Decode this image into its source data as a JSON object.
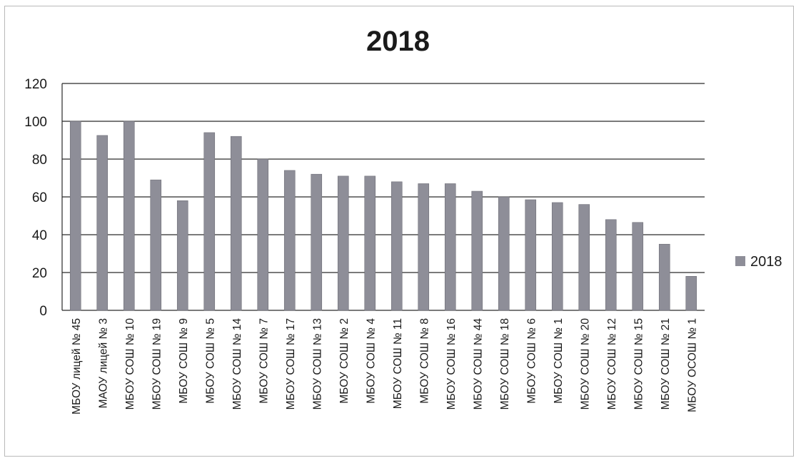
{
  "chart_data": {
    "type": "bar",
    "title": "2018",
    "categories": [
      "МБОУ лицей № 45",
      "МАОУ лицей № 3",
      "МБОУ СОШ № 10",
      "МБОУ СОШ № 19",
      "МБОУ СОШ № 9",
      "МБОУ СОШ № 5",
      "МБОУ СОШ № 14",
      "МБОУ СОШ № 7",
      "МБОУ СОШ № 17",
      "МБОУ СОШ № 13",
      "МБОУ СОШ № 2",
      "МБОУ СОШ № 4",
      "МБОУ СОШ № 11",
      "МБОУ СОШ № 8",
      "МБОУ СОШ № 16",
      "МБОУ СОШ № 44",
      "МБОУ СОШ № 18",
      "МБОУ СОШ № 6",
      "МБОУ СОШ № 1",
      "МБОУ СОШ № 20",
      "МБОУ СОШ № 12",
      "МБОУ СОШ № 15",
      "МБОУ СОШ № 21",
      "МБОУ ОСОШ № 1"
    ],
    "series": [
      {
        "name": "2018",
        "values": [
          100,
          92.5,
          100,
          69,
          58,
          94,
          92,
          80,
          74,
          72,
          71,
          71,
          68,
          67,
          67,
          63,
          60,
          58.5,
          57,
          56,
          48,
          46.5,
          35,
          18
        ]
      }
    ],
    "yticks": [
      "0",
      "20",
      "40",
      "60",
      "80",
      "100",
      "120"
    ],
    "ylim": [
      0,
      120
    ],
    "xlabel": "",
    "ylabel": "",
    "grid": true,
    "legend_position": "right",
    "colors": {
      "bar": "#8e8e98",
      "bar_stroke": "#6f6f78",
      "grid": "#2a2a2a"
    }
  }
}
